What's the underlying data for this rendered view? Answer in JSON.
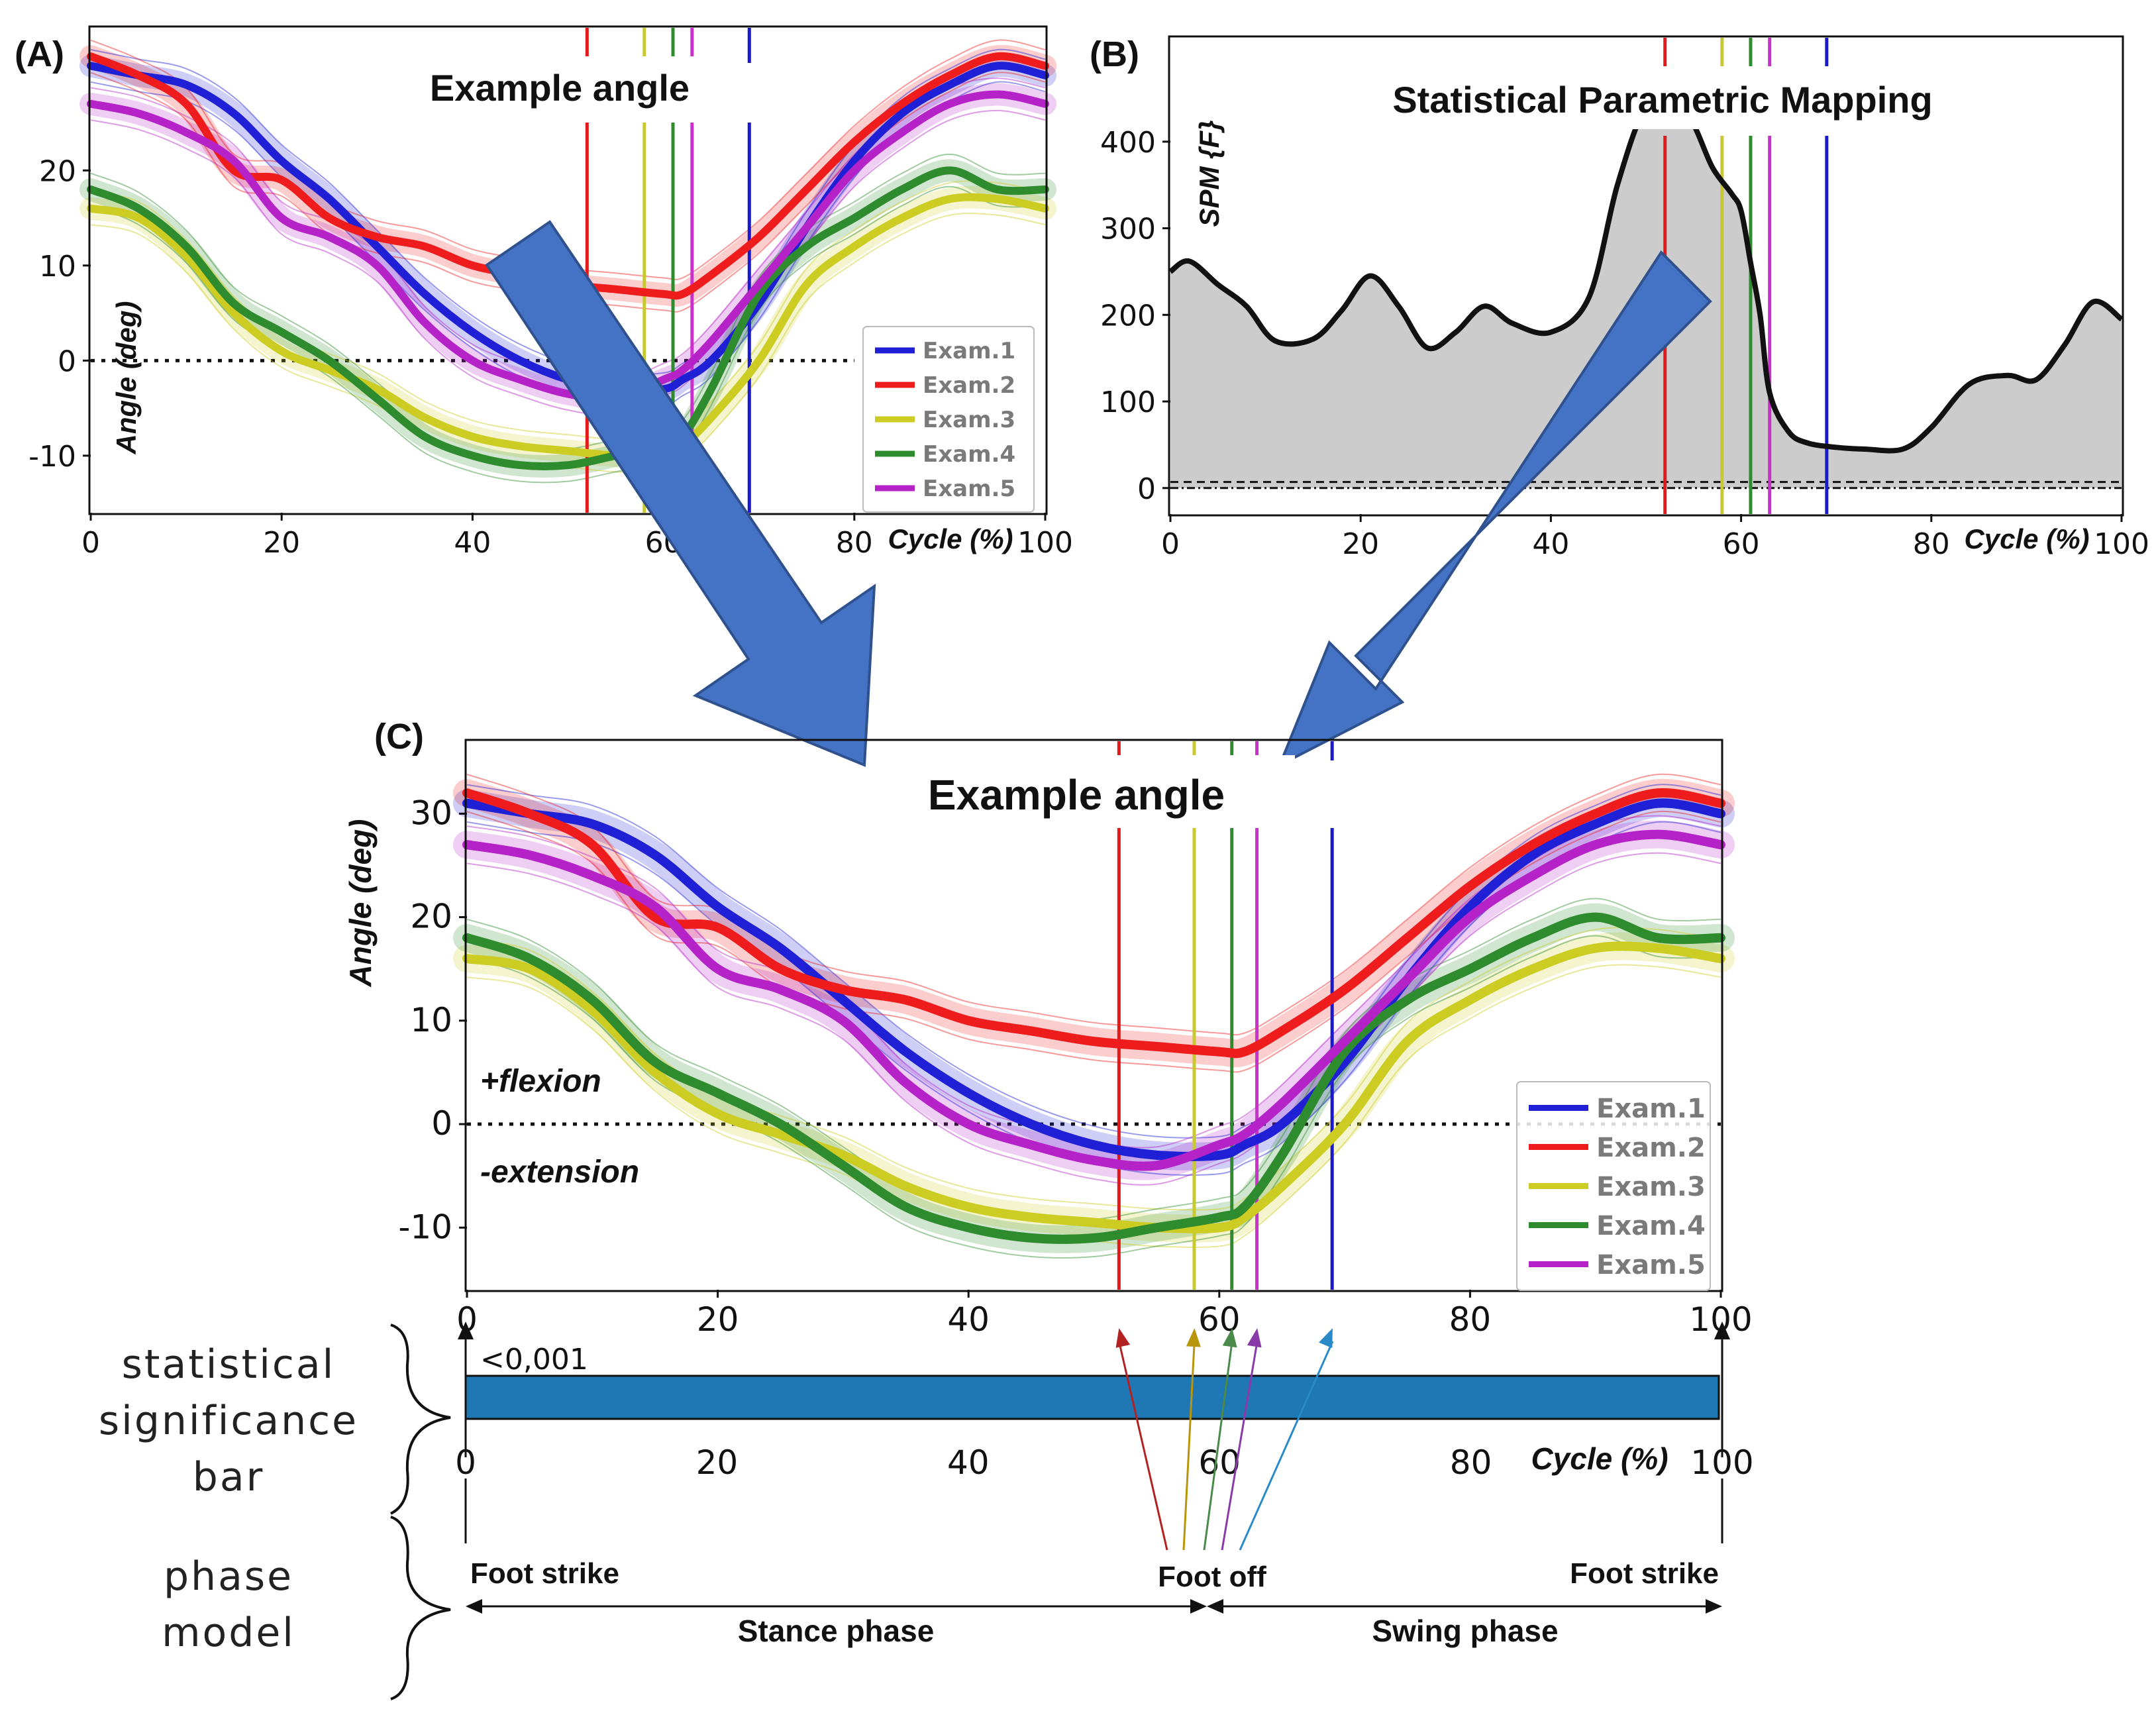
{
  "panels": {
    "a": {
      "label": "(A)",
      "title": "Example angle",
      "ylabel": "Angle (deg)",
      "xlabel": "Cycle (%)"
    },
    "b": {
      "label": "(B)",
      "title": "Statistical Parametric Mapping",
      "ylabel": "SPM {F}",
      "xlabel": "Cycle (%)"
    },
    "c": {
      "label": "(C)",
      "title": "Example angle",
      "ylabel": "Angle (deg)",
      "xlabel": "Cycle (%)",
      "flexion": "+flexion",
      "extension": "-extension"
    }
  },
  "legend": [
    "Exam.1",
    "Exam.2",
    "Exam.3",
    "Exam.4",
    "Exam.5"
  ],
  "series_colors": [
    "#1f1fd6",
    "#ee1c1c",
    "#cccc22",
    "#2e8b2e",
    "#b422c8"
  ],
  "event_colors": [
    "#e31a1c",
    "#c8c832",
    "#2e8b2e",
    "#c832c8",
    "#1a1acc"
  ],
  "footoff_arrow_colors": [
    "#b22222",
    "#b8960c",
    "#4a8a4a",
    "#8a3aa8",
    "#2a8ac8"
  ],
  "significance": {
    "side_label": [
      "statistical",
      "significance",
      "bar"
    ],
    "p_value": "<0,001",
    "bar_color": "#1f77b4",
    "start": 0,
    "end": 100
  },
  "phase_model": {
    "side_label": [
      "phase",
      "model"
    ],
    "foot_strike_start": "Foot strike",
    "foot_off": "Foot off",
    "foot_strike_end": "Foot strike",
    "stance": "Stance phase",
    "swing": "Swing phase",
    "foot_off_pct": 59
  },
  "chart_data": [
    {
      "id": "A",
      "type": "line",
      "title": "Example angle",
      "xlabel": "Cycle (%)",
      "ylabel": "Angle (deg)",
      "xlim": [
        0,
        100
      ],
      "ylim": [
        -16,
        35
      ],
      "xticks": [
        0,
        20,
        40,
        60,
        80,
        100
      ],
      "yticks": [
        -10,
        0,
        10,
        20
      ],
      "zero_line": true,
      "events": [
        52,
        58,
        61,
        63,
        69
      ],
      "x": [
        0,
        5,
        10,
        15,
        20,
        25,
        30,
        35,
        40,
        45,
        50,
        55,
        60,
        62,
        65,
        70,
        75,
        80,
        85,
        90,
        95,
        100
      ],
      "series": [
        {
          "name": "Exam.1",
          "values": [
            31,
            30,
            29,
            26,
            21,
            17,
            12,
            7,
            3,
            0,
            -2,
            -3,
            -3,
            -2,
            0,
            6,
            14,
            21,
            26,
            29,
            31,
            30
          ]
        },
        {
          "name": "Exam.2",
          "values": [
            32,
            30,
            27,
            20,
            19,
            15,
            13,
            12,
            10,
            9,
            8,
            7.5,
            7,
            7,
            9,
            13,
            18,
            23,
            27,
            30,
            32,
            31
          ]
        },
        {
          "name": "Exam.3",
          "values": [
            16,
            15,
            11,
            5,
            1,
            -1,
            -3,
            -6,
            -8,
            -9,
            -9.5,
            -10,
            -10,
            -9,
            -6,
            0,
            8,
            12,
            15,
            17,
            17,
            16
          ]
        },
        {
          "name": "Exam.4",
          "values": [
            18,
            16,
            12,
            6,
            3,
            0,
            -4,
            -8,
            -10,
            -11,
            -11,
            -10,
            -9,
            -8,
            -3,
            7,
            12,
            15,
            18,
            20,
            18,
            18
          ]
        },
        {
          "name": "Exam.5",
          "values": [
            27,
            26,
            24,
            21,
            15,
            13,
            10,
            4,
            0,
            -2,
            -3.5,
            -4,
            -2,
            -1,
            2,
            8,
            14,
            20,
            24,
            27,
            28,
            27
          ]
        }
      ]
    },
    {
      "id": "B",
      "type": "area",
      "title": "Statistical Parametric Mapping",
      "xlabel": "Cycle (%)",
      "ylabel": "SPM {F}",
      "xlim": [
        0,
        100
      ],
      "ylim": [
        -30,
        520
      ],
      "xticks": [
        0,
        20,
        40,
        60,
        80,
        100
      ],
      "yticks": [
        0,
        100,
        200,
        300,
        400
      ],
      "threshold": 7,
      "events": [
        52,
        58,
        61,
        63,
        69
      ],
      "x": [
        0,
        2,
        5,
        8,
        11,
        15,
        18,
        21,
        24,
        27,
        30,
        33,
        36,
        40,
        44,
        47,
        50,
        53,
        55,
        57,
        59,
        60,
        61,
        62,
        63,
        65,
        67,
        70,
        73,
        77,
        80,
        84,
        88,
        91,
        94,
        97,
        100
      ],
      "values": [
        250,
        262,
        235,
        210,
        170,
        172,
        205,
        245,
        210,
        162,
        180,
        210,
        190,
        180,
        220,
        350,
        440,
        450,
        420,
        370,
        340,
        320,
        260,
        200,
        110,
        65,
        52,
        47,
        45,
        45,
        70,
        120,
        130,
        125,
        165,
        215,
        195
      ]
    },
    {
      "id": "C",
      "type": "line",
      "title": "Example angle",
      "xlabel": "Cycle (%)",
      "ylabel": "Angle (deg)",
      "xlim": [
        0,
        100
      ],
      "ylim": [
        -16,
        37
      ],
      "xticks": [
        0,
        20,
        40,
        60,
        80,
        100
      ],
      "yticks": [
        -10,
        0,
        10,
        20,
        30
      ],
      "zero_line": true,
      "events": [
        52,
        58,
        61,
        63,
        69
      ],
      "x": [
        0,
        5,
        10,
        15,
        20,
        25,
        30,
        35,
        40,
        45,
        50,
        55,
        60,
        62,
        65,
        70,
        75,
        80,
        85,
        90,
        95,
        100
      ],
      "series": [
        {
          "name": "Exam.1",
          "values": [
            31,
            30,
            29,
            26,
            21,
            17,
            12,
            7,
            3,
            0,
            -2,
            -3,
            -3,
            -2,
            0,
            6,
            14,
            21,
            26,
            29,
            31,
            30
          ]
        },
        {
          "name": "Exam.2",
          "values": [
            32,
            30,
            27,
            20,
            19,
            15,
            13,
            12,
            10,
            9,
            8,
            7.5,
            7,
            7,
            9,
            13,
            18,
            23,
            27,
            30,
            32,
            31
          ]
        },
        {
          "name": "Exam.3",
          "values": [
            16,
            15,
            11,
            5,
            1,
            -1,
            -3,
            -6,
            -8,
            -9,
            -9.5,
            -10,
            -10,
            -9,
            -6,
            0,
            8,
            12,
            15,
            17,
            17,
            16
          ]
        },
        {
          "name": "Exam.4",
          "values": [
            18,
            16,
            12,
            6,
            3,
            0,
            -4,
            -8,
            -10,
            -11,
            -11,
            -10,
            -9,
            -8,
            -3,
            7,
            12,
            15,
            18,
            20,
            18,
            18
          ]
        },
        {
          "name": "Exam.5",
          "values": [
            27,
            26,
            24,
            21,
            15,
            13,
            10,
            4,
            0,
            -2,
            -3.5,
            -4,
            -2,
            -1,
            2,
            8,
            14,
            20,
            24,
            27,
            28,
            27
          ]
        }
      ]
    }
  ]
}
